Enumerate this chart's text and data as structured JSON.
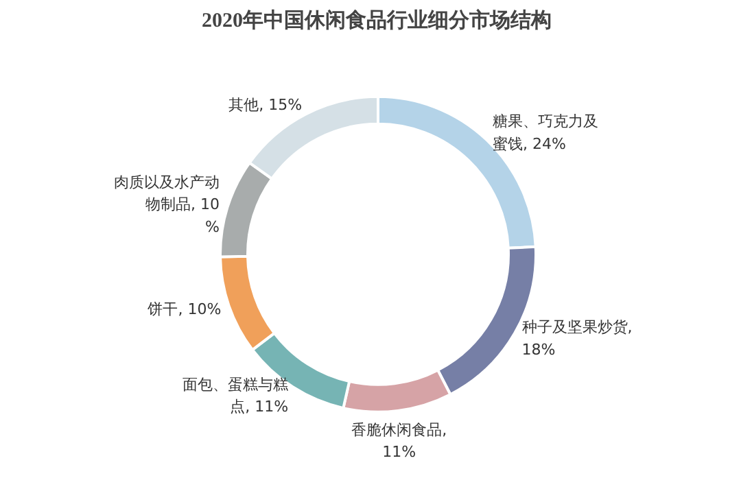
{
  "chart_data": {
    "type": "donut",
    "title": "2020年中国休闲食品行业细分市场结构",
    "categories": [
      "糖果、巧克力及蜜饯",
      "种子及坚果炒货",
      "香脆休闲食品",
      "面包、蛋糕与糕点",
      "饼干",
      "肉质以及水产动物制品",
      "其他"
    ],
    "values": [
      24,
      18,
      11,
      11,
      10,
      10,
      15
    ],
    "value_labels": [
      ", 24%",
      ", 18%",
      ", 11%",
      ", 11%",
      ", 10%",
      ", 10%",
      ", 15%"
    ],
    "colors": [
      "#b4d3e8",
      "#767fa6",
      "#d6a3a6",
      "#76b4b4",
      "#f0a05a",
      "#a8acac",
      "#d5e0e6"
    ]
  }
}
